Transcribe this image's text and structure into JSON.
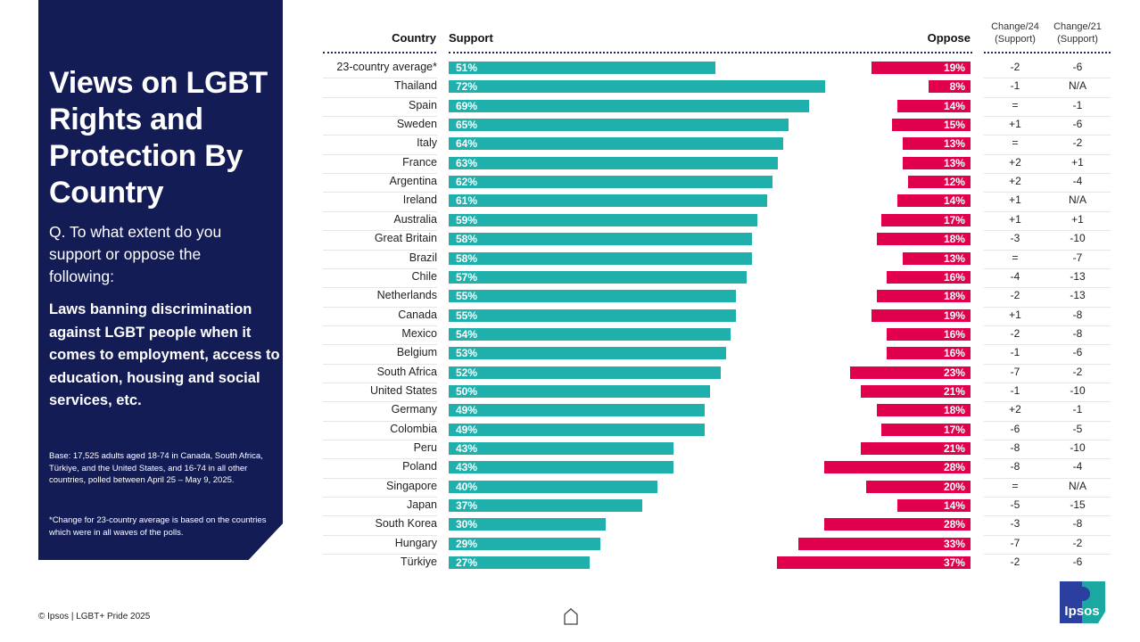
{
  "panel": {
    "title": "Views on LGBT Rights and Protection By Country",
    "question": "Q. To what extent do you support or oppose the following:",
    "statement": "Laws banning discrimination against LGBT people when it comes to employment, access to education, housing and social services, etc.",
    "base_note": "Base: 17,525 adults aged 18-74 in Canada, South Africa, Türkiye, and the United States, and 16-74 in all other countries, polled between April 25 – May 9, 2025.",
    "footnote": "*Change for 23-country average is based on the countries which were in all waves of the polls."
  },
  "footer": {
    "copyright": "© Ipsos | LGBT+ Pride 2025",
    "logo_text": "Ipsos"
  },
  "icons": {
    "home": "home-icon",
    "logo": "ipsos-logo"
  },
  "colors": {
    "panel": "#141c55",
    "support": "#1fb0ac",
    "oppose": "#e0004d"
  },
  "chart_data": {
    "type": "bar",
    "title": "Views on LGBT Rights and Protection By Country",
    "headers": {
      "country": "Country",
      "support": "Support",
      "oppose": "Oppose",
      "change24": [
        "Change/24",
        "(Support)"
      ],
      "change21": [
        "Change/21",
        "(Support)"
      ]
    },
    "categories": [
      "23-country average*",
      "Thailand",
      "Spain",
      "Sweden",
      "Italy",
      "France",
      "Argentina",
      "Ireland",
      "Australia",
      "Great Britain",
      "Brazil",
      "Chile",
      "Netherlands",
      "Canada",
      "Mexico",
      "Belgium",
      "South Africa",
      "United States",
      "Germany",
      "Colombia",
      "Peru",
      "Poland",
      "Singapore",
      "Japan",
      "South Korea",
      "Hungary",
      "Türkiye"
    ],
    "series": [
      {
        "name": "Support",
        "unit": "%",
        "values": [
          51,
          72,
          69,
          65,
          64,
          63,
          62,
          61,
          59,
          58,
          58,
          57,
          55,
          55,
          54,
          53,
          52,
          50,
          49,
          49,
          43,
          43,
          40,
          37,
          30,
          29,
          27
        ]
      },
      {
        "name": "Oppose",
        "unit": "%",
        "values": [
          19,
          8,
          14,
          15,
          13,
          13,
          12,
          14,
          17,
          18,
          13,
          16,
          18,
          19,
          16,
          16,
          23,
          21,
          18,
          17,
          21,
          28,
          20,
          14,
          28,
          33,
          37
        ]
      }
    ],
    "change24": [
      "-2",
      "-1",
      "=",
      "+1",
      "=",
      "+2",
      "+2",
      "+1",
      "+1",
      "-3",
      "=",
      "-4",
      "-2",
      "+1",
      "-2",
      "-1",
      "-7",
      "-1",
      "+2",
      "-6",
      "-8",
      "-8",
      "=",
      "-5",
      "-3",
      "-7",
      "-2"
    ],
    "change21": [
      "-6",
      "N/A",
      "-1",
      "-6",
      "-2",
      "+1",
      "-4",
      "N/A",
      "+1",
      "-10",
      "-7",
      "-13",
      "-13",
      "-8",
      "-8",
      "-6",
      "-2",
      "-10",
      "-1",
      "-5",
      "-10",
      "-4",
      "N/A",
      "-15",
      "-8",
      "-2",
      "-6"
    ],
    "xlim": [
      0,
      100
    ],
    "grid": false,
    "legend": "none"
  }
}
